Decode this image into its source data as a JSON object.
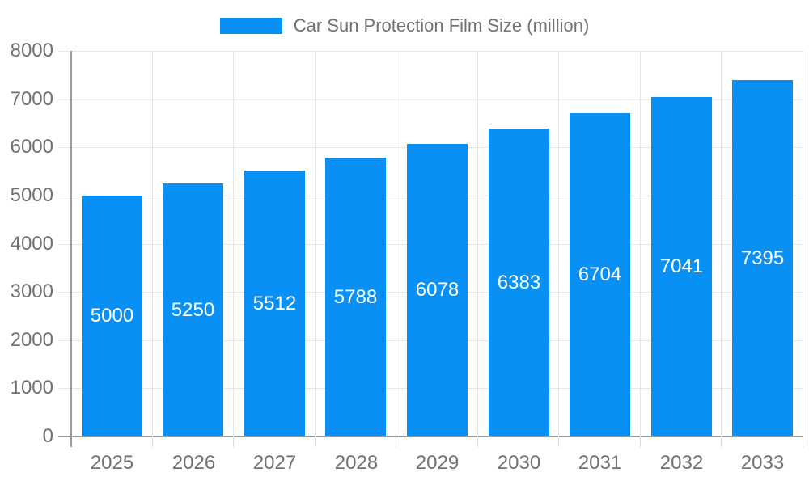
{
  "legend": {
    "label": "Car Sun Protection Film Size (million)"
  },
  "colors": {
    "bar": "#0990f5",
    "grid": "#e6e6e6",
    "axis": "#9a9a9a",
    "tick_light": "#dcdcdc",
    "text": "#717171",
    "bar_label": "#ffffff",
    "background": "#ffffff"
  },
  "chart_data": {
    "type": "bar",
    "title": "Car Sun Protection Film Size (million)",
    "categories": [
      "2025",
      "2026",
      "2027",
      "2028",
      "2029",
      "2030",
      "2031",
      "2032",
      "2033"
    ],
    "values": [
      5000,
      5250,
      5512,
      5788,
      6078,
      6383,
      6704,
      7041,
      7395
    ],
    "xlabel": "",
    "ylabel": "",
    "ylim": [
      0,
      8000
    ],
    "yticks": [
      0,
      1000,
      2000,
      3000,
      4000,
      5000,
      6000,
      7000,
      8000
    ],
    "grid": true,
    "legend_position": "top",
    "value_labels": "inside-center"
  }
}
